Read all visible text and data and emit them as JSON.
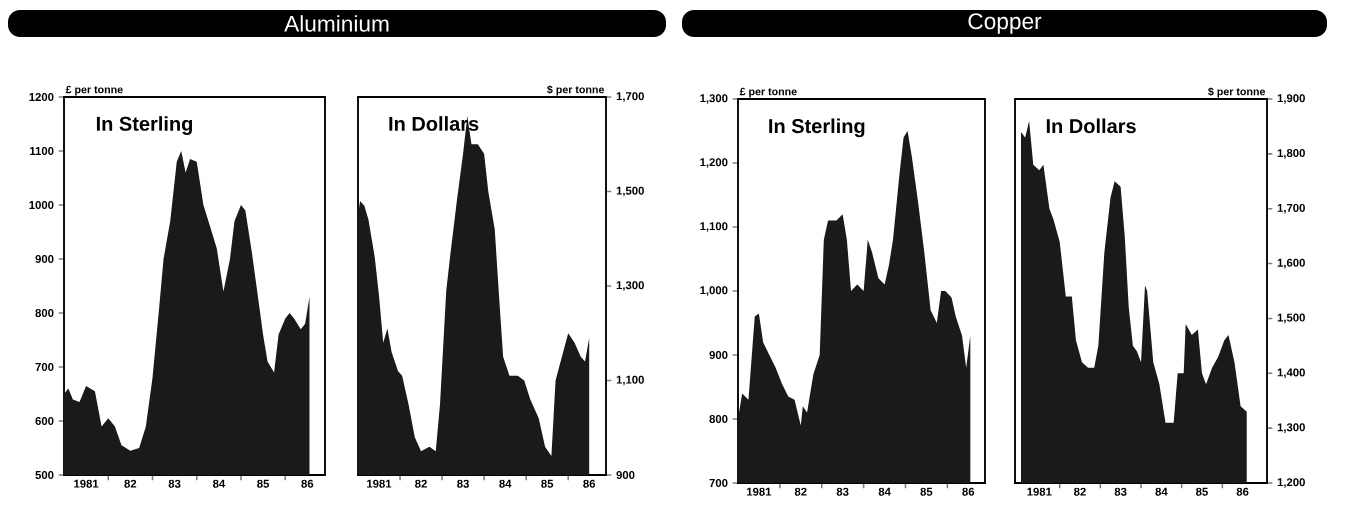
{
  "chart_data": [
    {
      "type": "area",
      "title": "Aluminium",
      "subtitle": "In Sterling",
      "ylabel": "£ per tonne",
      "xlim": [
        "1981-01-01",
        "1986-11-25"
      ],
      "ylim": [
        500,
        1200
      ],
      "yticks": [
        500,
        600,
        700,
        800,
        900,
        1000,
        1100,
        1200
      ],
      "xticks": [
        {
          "value": "1981-07-02",
          "label": "1981"
        },
        {
          "value": "1982-01-01",
          "label": null
        },
        {
          "value": "1982-07-02",
          "label": "82"
        },
        {
          "value": "1983-01-01",
          "label": null
        },
        {
          "value": "1983-07-02",
          "label": "83"
        },
        {
          "value": "1984-01-01",
          "label": null
        },
        {
          "value": "1984-07-02",
          "label": "84"
        },
        {
          "value": "1985-01-01",
          "label": null
        },
        {
          "value": "1985-07-02",
          "label": "85"
        },
        {
          "value": "1986-01-01",
          "label": null
        },
        {
          "value": "1986-07-02",
          "label": "86"
        }
      ],
      "x": [
        "1981-01-01",
        "1981-02-06",
        "1981-03-15",
        "1981-05-09",
        "1981-07-02",
        "1981-09-13",
        "1981-11-07",
        "1982-01-01",
        "1982-02-25",
        "1982-04-20",
        "1982-07-02",
        "1982-09-13",
        "1982-11-07",
        "1983-01-01",
        "1983-02-25",
        "1983-04-02",
        "1983-05-27",
        "1983-07-20",
        "1983-08-26",
        "1983-10-01",
        "1983-11-07",
        "1984-01-01",
        "1984-02-25",
        "1984-04-20",
        "1984-06-14",
        "1984-08-08",
        "1984-10-01",
        "1984-11-07",
        "1985-01-01",
        "1985-02-06",
        "1985-04-02",
        "1985-05-27",
        "1985-07-02",
        "1985-08-08",
        "1985-10-01",
        "1985-11-07",
        "1986-01-01",
        "1986-02-06",
        "1986-03-15",
        "1986-05-09",
        "1986-06-14",
        "1986-07-20"
      ],
      "series": [
        {
          "color": "#1a1a1a",
          "values": [
            650,
            660,
            640,
            635,
            665,
            655,
            590,
            605,
            590,
            555,
            545,
            550,
            590,
            680,
            810,
            900,
            970,
            1080,
            1100,
            1060,
            1085,
            1080,
            1000,
            960,
            920,
            840,
            900,
            970,
            1000,
            990,
            910,
            820,
            760,
            710,
            690,
            760,
            790,
            800,
            790,
            770,
            780,
            830
          ]
        }
      ]
    },
    {
      "type": "area",
      "subtitle": "In Dollars",
      "y2label": "$ per tonne",
      "xlim": [
        "1981-01-01",
        "1986-11-25"
      ],
      "y2lim": [
        900,
        1700
      ],
      "y2ticks": [
        900,
        {
          "value": 1100,
          "label": "1,100"
        },
        {
          "value": 1300,
          "label": "1,300"
        },
        {
          "value": 1500,
          "label": "1,500"
        },
        {
          "value": 1700,
          "label": "1,700"
        }
      ],
      "xticks": [
        {
          "value": "1981-07-02",
          "label": "1981"
        },
        {
          "value": "1982-01-01",
          "label": null
        },
        {
          "value": "1982-07-02",
          "label": "82"
        },
        {
          "value": "1983-01-01",
          "label": null
        },
        {
          "value": "1983-07-02",
          "label": "83"
        },
        {
          "value": "1984-01-01",
          "label": null
        },
        {
          "value": "1984-07-02",
          "label": "84"
        },
        {
          "value": "1985-01-01",
          "label": null
        },
        {
          "value": "1985-07-02",
          "label": "85"
        },
        {
          "value": "1986-01-01",
          "label": null
        },
        {
          "value": "1986-07-02",
          "label": "86"
        }
      ],
      "x": [
        "1981-01-01",
        "1981-01-19",
        "1981-02-25",
        "1981-04-02",
        "1981-05-27",
        "1981-07-02",
        "1981-08-08",
        "1981-09-13",
        "1981-10-20",
        "1981-12-14",
        "1982-01-19",
        "1982-03-15",
        "1982-05-09",
        "1982-07-02",
        "1982-09-13",
        "1982-11-07",
        "1982-12-14",
        "1983-02-06",
        "1983-03-15",
        "1983-05-09",
        "1983-07-02",
        "1983-08-08",
        "1983-09-13",
        "1983-11-07",
        "1984-01-01",
        "1984-02-06",
        "1984-04-02",
        "1984-05-09",
        "1984-06-14",
        "1984-08-08",
        "1984-10-20",
        "1984-12-14",
        "1985-02-06",
        "1985-04-20",
        "1985-06-14",
        "1985-08-08",
        "1985-09-13",
        "1985-11-07",
        "1986-01-01",
        "1986-02-25",
        "1986-04-20",
        "1986-05-27",
        "1986-07-02"
      ],
      "series": [
        {
          "color": "#1a1a1a",
          "axis": "y2",
          "values": [
            1450,
            1480,
            1470,
            1440,
            1360,
            1280,
            1180,
            1210,
            1160,
            1120,
            1110,
            1050,
            980,
            950,
            960,
            950,
            1050,
            1290,
            1370,
            1480,
            1580,
            1660,
            1600,
            1600,
            1580,
            1500,
            1420,
            1280,
            1150,
            1110,
            1110,
            1100,
            1060,
            1020,
            960,
            940,
            1100,
            1150,
            1200,
            1180,
            1150,
            1140,
            1190
          ]
        }
      ]
    },
    {
      "type": "area",
      "title": "Copper",
      "subtitle": "In Sterling",
      "ylabel": "£ per tonne",
      "xlim": [
        "1981-01-01",
        "1986-11-25"
      ],
      "ylim": [
        700,
        1300
      ],
      "yticks": [
        700,
        800,
        900,
        {
          "value": 1000,
          "label": "1,000"
        },
        {
          "value": 1100,
          "label": "1,100"
        },
        {
          "value": 1200,
          "label": "1,200"
        },
        {
          "value": 1300,
          "label": "1,300"
        }
      ],
      "xticks": [
        {
          "value": "1981-07-02",
          "label": "1981"
        },
        {
          "value": "1982-01-01",
          "label": null
        },
        {
          "value": "1982-07-02",
          "label": "82"
        },
        {
          "value": "1983-01-01",
          "label": null
        },
        {
          "value": "1983-07-02",
          "label": "83"
        },
        {
          "value": "1984-01-01",
          "label": null
        },
        {
          "value": "1984-07-02",
          "label": "84"
        },
        {
          "value": "1985-01-01",
          "label": null
        },
        {
          "value": "1985-07-02",
          "label": "85"
        },
        {
          "value": "1986-01-01",
          "label": null
        },
        {
          "value": "1986-07-02",
          "label": "86"
        }
      ],
      "x": [
        "1981-01-01",
        "1981-02-06",
        "1981-04-02",
        "1981-05-27",
        "1981-07-02",
        "1981-08-08",
        "1981-10-01",
        "1981-11-25",
        "1982-01-19",
        "1982-03-15",
        "1982-05-09",
        "1982-07-02",
        "1982-07-20",
        "1982-08-26",
        "1982-10-20",
        "1982-12-14",
        "1983-01-19",
        "1983-02-25",
        "1983-05-09",
        "1983-07-02",
        "1983-08-08",
        "1983-09-13",
        "1983-11-07",
        "1984-01-01",
        "1984-02-06",
        "1984-03-15",
        "1984-05-09",
        "1984-07-02",
        "1984-08-08",
        "1984-09-13",
        "1984-11-07",
        "1984-12-14",
        "1985-01-19",
        "1985-02-25",
        "1985-04-20",
        "1985-06-14",
        "1985-08-08",
        "1985-10-01",
        "1985-11-07",
        "1985-12-14",
        "1986-02-06",
        "1986-03-15",
        "1986-05-09",
        "1986-06-14",
        "1986-07-20"
      ],
      "series": [
        {
          "color": "#1a1a1a",
          "values": [
            800,
            840,
            830,
            960,
            965,
            920,
            900,
            880,
            855,
            835,
            830,
            790,
            820,
            810,
            870,
            900,
            1080,
            1110,
            1110,
            1120,
            1080,
            1000,
            1010,
            1000,
            1080,
            1060,
            1020,
            1010,
            1040,
            1080,
            1180,
            1240,
            1250,
            1210,
            1140,
            1060,
            970,
            950,
            1000,
            1000,
            990,
            960,
            930,
            880,
            930
          ]
        }
      ]
    },
    {
      "type": "area",
      "subtitle": "In Dollars",
      "y2label": "$ per tonne",
      "xlim": [
        "1980-11-25",
        "1987-02-06"
      ],
      "y2lim": [
        1200,
        1900
      ],
      "y2ticks": [
        {
          "value": 1200,
          "label": "1,200"
        },
        {
          "value": 1300,
          "label": "1,300"
        },
        {
          "value": 1400,
          "label": "1,400"
        },
        {
          "value": 1500,
          "label": "1,500"
        },
        {
          "value": 1600,
          "label": "1,600"
        },
        {
          "value": 1700,
          "label": "1,700"
        },
        {
          "value": 1800,
          "label": "1,800"
        },
        {
          "value": 1900,
          "label": "1,900"
        }
      ],
      "xticks": [
        {
          "value": "1981-07-02",
          "label": "1981"
        },
        {
          "value": "1982-01-01",
          "label": null
        },
        {
          "value": "1982-07-02",
          "label": "82"
        },
        {
          "value": "1983-01-01",
          "label": null
        },
        {
          "value": "1983-07-02",
          "label": "83"
        },
        {
          "value": "1984-01-01",
          "label": null
        },
        {
          "value": "1984-07-02",
          "label": "84"
        },
        {
          "value": "1985-01-01",
          "label": null
        },
        {
          "value": "1985-07-02",
          "label": "85"
        },
        {
          "value": "1986-01-01",
          "label": null
        },
        {
          "value": "1986-07-02",
          "label": "86"
        }
      ],
      "x": [
        "1981-01-19",
        "1981-02-25",
        "1981-04-02",
        "1981-05-09",
        "1981-07-02",
        "1981-08-08",
        "1981-10-01",
        "1981-11-07",
        "1982-01-01",
        "1982-02-25",
        "1982-04-20",
        "1982-05-27",
        "1982-07-20",
        "1982-09-13",
        "1982-11-07",
        "1982-12-14",
        "1983-02-06",
        "1983-04-02",
        "1983-05-09",
        "1983-07-02",
        "1983-08-08",
        "1983-09-13",
        "1983-10-20",
        "1983-11-25",
        "1984-01-01",
        "1984-02-06",
        "1984-02-25",
        "1984-04-20",
        "1984-06-14",
        "1984-08-08",
        "1984-10-20",
        "1984-11-25",
        "1985-01-19",
        "1985-02-06",
        "1985-04-02",
        "1985-05-27",
        "1985-07-02",
        "1985-08-08",
        "1985-10-01",
        "1985-11-25",
        "1986-01-19",
        "1986-02-25",
        "1986-04-20",
        "1986-06-14",
        "1986-08-08"
      ],
      "series": [
        {
          "color": "#1a1a1a",
          "axis": "y2",
          "values": [
            1840,
            1830,
            1860,
            1780,
            1770,
            1780,
            1700,
            1680,
            1640,
            1540,
            1540,
            1460,
            1420,
            1410,
            1410,
            1450,
            1620,
            1720,
            1750,
            1740,
            1650,
            1520,
            1450,
            1440,
            1420,
            1560,
            1550,
            1420,
            1380,
            1310,
            1310,
            1400,
            1400,
            1490,
            1470,
            1480,
            1400,
            1380,
            1410,
            1430,
            1460,
            1470,
            1420,
            1340,
            1330
          ]
        }
      ]
    }
  ]
}
